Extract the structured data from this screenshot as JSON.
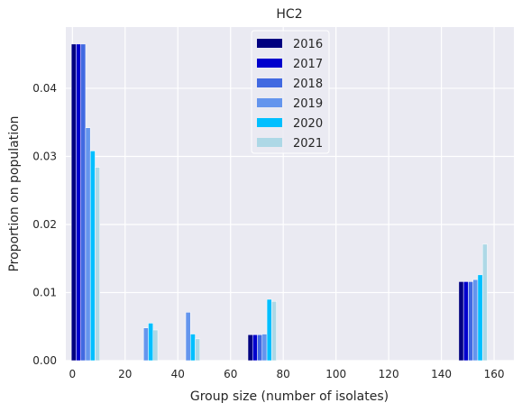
{
  "chart_data": {
    "type": "bar",
    "title": "HC2",
    "xlabel": "Group size (number of isolates)",
    "ylabel": "Proportion on population",
    "xlim": [
      -2.5,
      167.5
    ],
    "ylim": [
      0,
      0.049
    ],
    "xticks": [
      0,
      20,
      40,
      60,
      80,
      100,
      120,
      140,
      160
    ],
    "yticks": [
      0.0,
      0.01,
      0.02,
      0.03,
      0.04
    ],
    "ytick_labels": [
      "0.00",
      "0.01",
      "0.02",
      "0.03",
      "0.04"
    ],
    "grid": true,
    "legend_position": "top-center",
    "bar_width": 1.8,
    "groups": [
      5,
      27,
      43,
      72,
      152
    ],
    "series": [
      {
        "name": "2016",
        "color": "#000080",
        "offset": -4.5,
        "values": [
          0.0465,
          0.0,
          0.0,
          0.0038,
          0.0116
        ]
      },
      {
        "name": "2017",
        "color": "#0000CD",
        "offset": -2.7,
        "values": [
          0.0465,
          0.0,
          0.0,
          0.0038,
          0.0116
        ]
      },
      {
        "name": "2018",
        "color": "#4169E1",
        "offset": -0.9,
        "values": [
          0.0465,
          0.0,
          0.0,
          0.0038,
          0.0116
        ]
      },
      {
        "name": "2019",
        "color": "#6495ED",
        "offset": 0.9,
        "values": [
          0.0342,
          0.0048,
          0.0071,
          0.0039,
          0.0119
        ]
      },
      {
        "name": "2020",
        "color": "#00BFFF",
        "offset": 2.7,
        "values": [
          0.0308,
          0.0055,
          0.0039,
          0.009,
          0.0126
        ]
      },
      {
        "name": "2021",
        "color": "#ADD8E6",
        "offset": 4.5,
        "values": [
          0.0284,
          0.0045,
          0.0032,
          0.0087,
          0.0171
        ]
      }
    ]
  }
}
